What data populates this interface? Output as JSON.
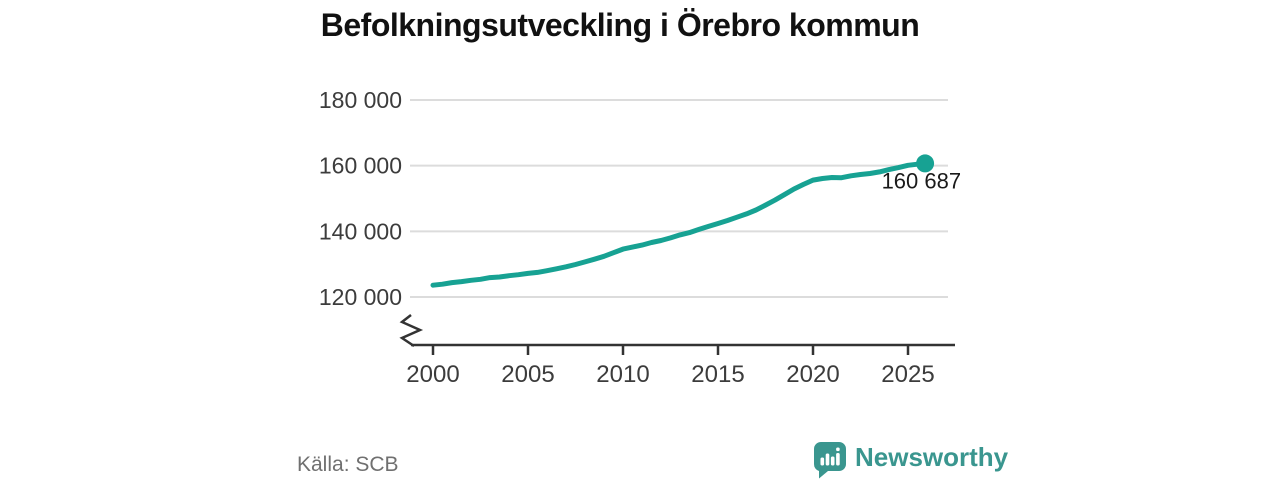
{
  "colors": {
    "accent": "#17a293",
    "brand": "#3a968f",
    "grid": "#dcdcdc",
    "axis": "#333333",
    "tick_text": "#3c3c3c",
    "title_text": "#111111",
    "muted": "#707070",
    "annotation_text": "#1a1a1a"
  },
  "footer": {
    "source": "Källa: SCB",
    "brand": "Newsworthy",
    "brand_icon": "speech-bubble-bar-chart-icon"
  },
  "chart_data": {
    "type": "line",
    "title": "Befolkningsutveckling i Örebro kommun",
    "xlabel": "",
    "ylabel": "",
    "legend": "none",
    "grid": "horizontal",
    "axis_break_bottom_left": true,
    "xlim": [
      1999.5,
      2027.5
    ],
    "ylim": [
      113000,
      186000
    ],
    "x_ticks": [
      2000,
      2005,
      2010,
      2015,
      2020,
      2025
    ],
    "y_ticks": [
      {
        "value": 120000,
        "label": "120 000"
      },
      {
        "value": 140000,
        "label": "140 000"
      },
      {
        "value": 160000,
        "label": "160 000"
      },
      {
        "value": 180000,
        "label": "180 000"
      }
    ],
    "annotation": {
      "text": "160 687",
      "value": 160687,
      "x": 2025.9
    },
    "series": [
      {
        "name": "Befolkning i Örebro kommun",
        "points": [
          [
            2000.0,
            123600
          ],
          [
            2000.5,
            123900
          ],
          [
            2001.0,
            124400
          ],
          [
            2001.5,
            124700
          ],
          [
            2002.0,
            125100
          ],
          [
            2002.5,
            125400
          ],
          [
            2003.0,
            125900
          ],
          [
            2003.5,
            126100
          ],
          [
            2004.0,
            126500
          ],
          [
            2004.5,
            126800
          ],
          [
            2005.0,
            127200
          ],
          [
            2005.5,
            127500
          ],
          [
            2006.0,
            128000
          ],
          [
            2006.5,
            128600
          ],
          [
            2007.0,
            129200
          ],
          [
            2007.5,
            129900
          ],
          [
            2008.0,
            130700
          ],
          [
            2008.5,
            131500
          ],
          [
            2009.0,
            132400
          ],
          [
            2009.5,
            133500
          ],
          [
            2010.0,
            134600
          ],
          [
            2010.5,
            135200
          ],
          [
            2011.0,
            135800
          ],
          [
            2011.5,
            136600
          ],
          [
            2012.0,
            137200
          ],
          [
            2012.5,
            138000
          ],
          [
            2013.0,
            138900
          ],
          [
            2013.5,
            139600
          ],
          [
            2014.0,
            140600
          ],
          [
            2014.5,
            141500
          ],
          [
            2015.0,
            142400
          ],
          [
            2015.5,
            143300
          ],
          [
            2016.0,
            144300
          ],
          [
            2016.5,
            145300
          ],
          [
            2017.0,
            146500
          ],
          [
            2017.5,
            148000
          ],
          [
            2018.0,
            149500
          ],
          [
            2018.5,
            151200
          ],
          [
            2019.0,
            152900
          ],
          [
            2019.5,
            154300
          ],
          [
            2020.0,
            155600
          ],
          [
            2020.5,
            156100
          ],
          [
            2021.0,
            156400
          ],
          [
            2021.5,
            156350
          ],
          [
            2022.0,
            156900
          ],
          [
            2022.5,
            157300
          ],
          [
            2023.0,
            157600
          ],
          [
            2023.5,
            158100
          ],
          [
            2024.0,
            158800
          ],
          [
            2024.5,
            159400
          ],
          [
            2025.0,
            160100
          ],
          [
            2025.5,
            160450
          ],
          [
            2025.9,
            160687
          ]
        ]
      }
    ]
  }
}
